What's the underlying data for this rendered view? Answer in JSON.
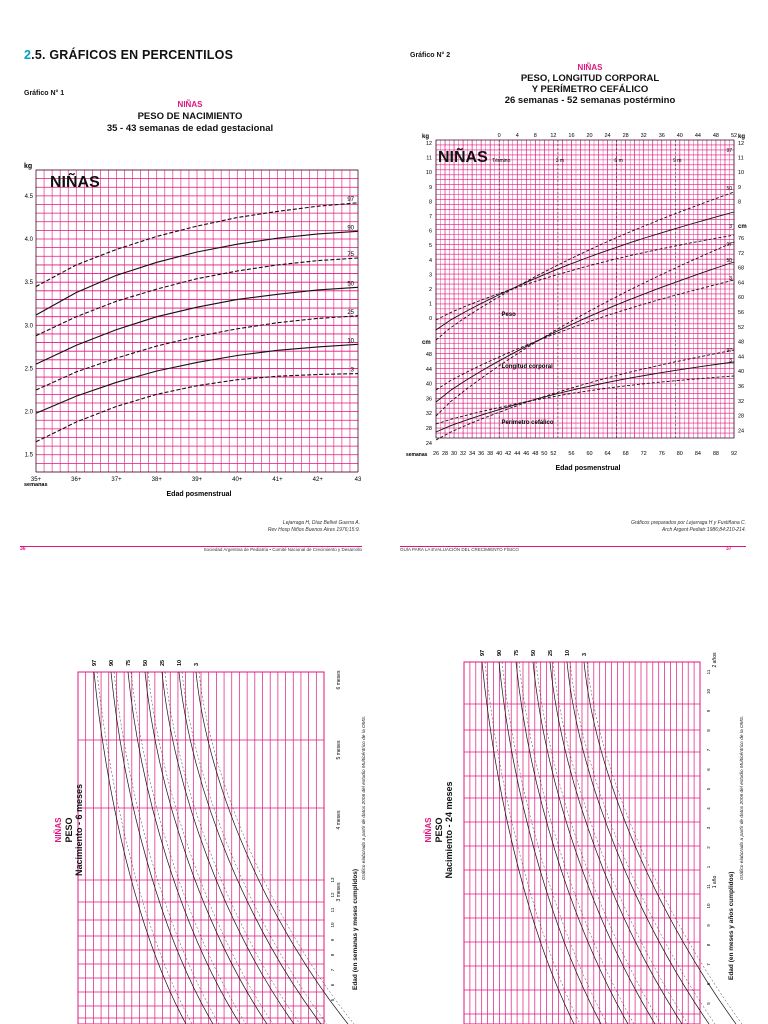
{
  "page": {
    "section_number": "2",
    "section_title": ".5. GRÁFICOS EN PERCENTILOS",
    "left_page_number": "36",
    "left_footer": "Sociedad Argentina de Pediatría • Comité Nacional de Crecimiento y Desarrollo",
    "right_footer": "GUÍA PARA LA EVALUACIÓN DEL CRECIMIENTO FÍSICO",
    "right_page_number": "37",
    "colors": {
      "grid": "#e0157f",
      "accent": "#e0157f",
      "section_blue": "#00a0c8",
      "ink": "#111111"
    }
  },
  "chart1": {
    "label": "Gráfico N° 1",
    "subtitle_pink": "NIÑAS",
    "title": "PESO DE NACIMIENTO",
    "subtitle": "35 - 43 semanas de edad gestacional",
    "watermark": "NIÑAS",
    "ylabel": "kg",
    "xlabel": "Edad posmenstrual",
    "x_unit_label": "semanas",
    "reference": [
      "Lejarraga H, Díaz Bellvé Guerra A.",
      "Rev Hosp Niños Buenos Aires 1976;15:9."
    ]
  },
  "chart2": {
    "label": "Gráfico N° 2",
    "subtitle_pink": "NIÑAS",
    "title_line1": "PESO, LONGITUD CORPORAL",
    "title_line2": "Y PERÍMETRO CEFÁLICO",
    "subtitle": "26 semanas - 52 semanas postérmino",
    "watermark": "NIÑAS",
    "xlabel": "Edad posmenstrual",
    "x_unit_label": "semanas",
    "reference": [
      "Gráficos preparados por Lejarraga H y Fustiñana C.",
      "Arch Argent Pediatr 1986;84:210-214."
    ]
  },
  "chart3": {
    "vertical_title_pink": "NIÑAS",
    "vertical_title": "PESO",
    "vertical_subtitle": "Nacimiento - 6 meses",
    "axis_title": "Edad (en semanas y meses cumplidos)",
    "note": "Gráfico elaborado a partir de datos 2006 del estudio Multicéntrico de la OMS.",
    "month_labels": [
      "6 meses",
      "5 meses",
      "4 meses",
      "3 meses"
    ],
    "week_labels": [
      "13",
      "12",
      "11",
      "10",
      "9",
      "8",
      "7",
      "6",
      "5"
    ]
  },
  "chart4": {
    "vertical_title_pink": "NIÑAS",
    "vertical_title": "PESO",
    "vertical_subtitle": "Nacimiento - 24 meses",
    "axis_title": "Edad (en meses y años cumplidos)",
    "note": "Gráfico elaborado a partir de datos 2006 del estudio Multicéntrico de la OMS.",
    "year_labels": [
      "2 años",
      "1 año"
    ],
    "month_labels": [
      "11",
      "10",
      "9",
      "8",
      "7",
      "6",
      "5",
      "4",
      "3",
      "2",
      "1",
      "11",
      "10",
      "9",
      "8",
      "7",
      "6",
      "5"
    ]
  },
  "chart_data": [
    {
      "type": "line",
      "title": "PESO DE NACIMIENTO",
      "xlabel": "Edad posmenstrual",
      "ylabel": "kg",
      "x": [
        35,
        36,
        37,
        38,
        39,
        40,
        41,
        42,
        43
      ],
      "x_tick_labels": [
        "35+",
        "36+",
        "37+",
        "38+",
        "39+",
        "40+",
        "41+",
        "42+",
        "43"
      ],
      "y_ticks": [
        "1.5",
        "2.0",
        "2.5",
        "3.0",
        "3.5",
        "4.0",
        "4.5"
      ],
      "ylim": [
        1.3,
        4.8
      ],
      "grid": true,
      "series": [
        {
          "name": "97",
          "dashed": true,
          "values": [
            3.45,
            3.7,
            3.88,
            4.03,
            4.15,
            4.25,
            4.32,
            4.38,
            4.42
          ]
        },
        {
          "name": "90",
          "dashed": false,
          "values": [
            3.12,
            3.38,
            3.58,
            3.73,
            3.85,
            3.94,
            4.01,
            4.06,
            4.09
          ]
        },
        {
          "name": "75",
          "dashed": true,
          "values": [
            2.88,
            3.1,
            3.28,
            3.42,
            3.54,
            3.63,
            3.7,
            3.75,
            3.78
          ]
        },
        {
          "name": "50",
          "dashed": false,
          "values": [
            2.55,
            2.77,
            2.95,
            3.1,
            3.21,
            3.3,
            3.36,
            3.41,
            3.44
          ]
        },
        {
          "name": "25",
          "dashed": true,
          "values": [
            2.25,
            2.46,
            2.62,
            2.76,
            2.87,
            2.96,
            3.03,
            3.08,
            3.11
          ]
        },
        {
          "name": "10",
          "dashed": false,
          "values": [
            1.98,
            2.18,
            2.34,
            2.47,
            2.57,
            2.65,
            2.71,
            2.75,
            2.78
          ]
        },
        {
          "name": "3",
          "dashed": true,
          "values": [
            1.65,
            1.88,
            2.06,
            2.2,
            2.3,
            2.37,
            2.41,
            2.43,
            2.44
          ]
        }
      ]
    },
    {
      "type": "line",
      "title": "PESO, LONGITUD CORPORAL Y PERÍMETRO CEFÁLICO",
      "xlabel": "Edad posmenstrual",
      "x_ticks": [
        26,
        28,
        30,
        32,
        34,
        36,
        38,
        40,
        42,
        44,
        46,
        48,
        50,
        52,
        56,
        60,
        64,
        68,
        72,
        76,
        80,
        84,
        88,
        92
      ],
      "top_ticks": [
        "0",
        "4",
        "8",
        "12",
        "16",
        "20",
        "24",
        "28",
        "32",
        "36",
        "40",
        "44",
        "48",
        "52"
      ],
      "top_markers": [
        "Término",
        "3 m",
        "6 m",
        "9 m"
      ],
      "left_kg_ticks": [
        "12",
        "11",
        "10",
        "9",
        "8",
        "7",
        "6",
        "5",
        "4",
        "3",
        "2",
        "1",
        "0"
      ],
      "left_cm_ticks": [
        "48",
        "44",
        "40",
        "36",
        "32",
        "28",
        "24"
      ],
      "right_kg_ticks": [
        "12",
        "11",
        "10",
        "9",
        "8"
      ],
      "right_cm_ticks": [
        "76",
        "72",
        "68",
        "64",
        "60",
        "56",
        "52",
        "48",
        "44",
        "40",
        "36",
        "32",
        "28",
        "24"
      ],
      "annotations": [
        "Peso",
        "Longitud corporal",
        "Perímetro cefálico"
      ],
      "percentile_labels": [
        "97",
        "50",
        "3",
        "97",
        "50",
        "3",
        "97",
        "3"
      ],
      "grid": true
    },
    {
      "type": "line",
      "title": "PESO Nacimiento - 6 meses",
      "series_names": [
        "97",
        "90",
        "75",
        "50",
        "25",
        "10",
        "3"
      ],
      "grid": true
    },
    {
      "type": "line",
      "title": "PESO Nacimiento - 24 meses",
      "series_names": [
        "97",
        "90",
        "75",
        "50",
        "25",
        "10",
        "3"
      ],
      "grid": true
    }
  ]
}
